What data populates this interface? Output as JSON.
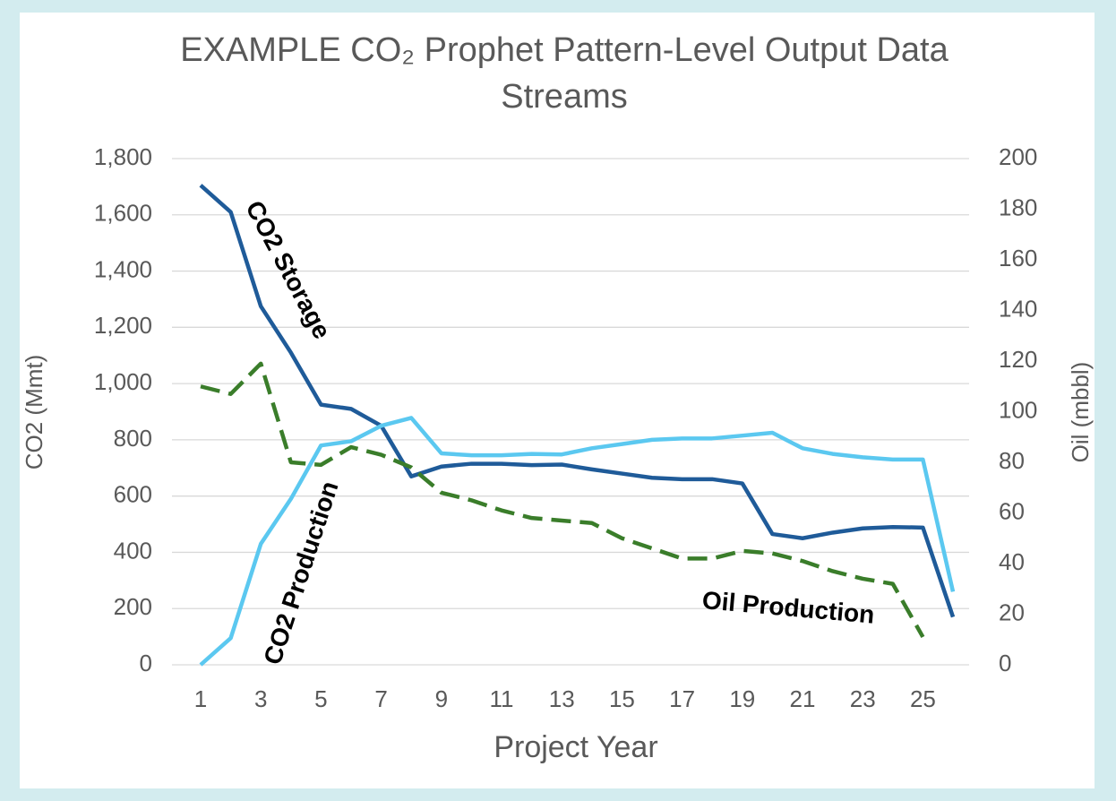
{
  "chart_data": {
    "type": "line",
    "title": "EXAMPLE CO₂ Prophet Pattern-Level Output Data Streams",
    "xlabel": "Project Year",
    "ylabel": "CO2 (Mmt)",
    "y2label": "Oil (mbbl)",
    "categories": [
      "1",
      null,
      "3",
      null,
      "5",
      null,
      "7",
      null,
      "9",
      null,
      "11",
      null,
      "13",
      null,
      "15",
      null,
      "17",
      null,
      "19",
      null,
      "21",
      null,
      "23",
      null,
      "25",
      null
    ],
    "ylim": [
      0,
      1800
    ],
    "yticks": [
      0,
      200,
      400,
      600,
      800,
      {
        "value": 1000,
        "label": "1,000"
      },
      {
        "value": 1200,
        "label": "1,200"
      },
      {
        "value": 1400,
        "label": "1,400"
      },
      {
        "value": 1600,
        "label": "1,600"
      },
      {
        "value": 1800,
        "label": "1,800"
      }
    ],
    "y2lim": [
      0,
      200
    ],
    "y2ticks": [
      0,
      20,
      40,
      60,
      80,
      100,
      120,
      140,
      160,
      180,
      200
    ],
    "grid": true,
    "series": [
      {
        "name": "CO2 Storage",
        "color": "#1f5b99",
        "dashed": false,
        "values": [
          1705,
          1610,
          1275,
          1110,
          925,
          910,
          850,
          670,
          705,
          715,
          715,
          710,
          712,
          695,
          680,
          665,
          660,
          660,
          645,
          465,
          450,
          470,
          485,
          490,
          488,
          170
        ]
      },
      {
        "name": "CO2 Production",
        "color": "#5bc8f0",
        "dashed": false,
        "values": [
          0,
          95,
          430,
          590,
          780,
          795,
          850,
          878,
          752,
          745,
          745,
          750,
          748,
          770,
          785,
          800,
          805,
          805,
          815,
          825,
          770,
          750,
          738,
          730,
          730,
          260
        ]
      },
      {
        "name": "Oil Production",
        "color": "#3a7d2a",
        "dashed": true,
        "axis": "y2",
        "values": [
          110,
          107,
          119,
          80,
          79,
          86,
          83,
          78,
          68,
          65,
          61,
          58,
          57,
          56,
          50,
          46,
          42,
          42,
          45,
          44,
          41,
          37,
          34,
          32,
          11,
          null
        ]
      }
    ]
  }
}
